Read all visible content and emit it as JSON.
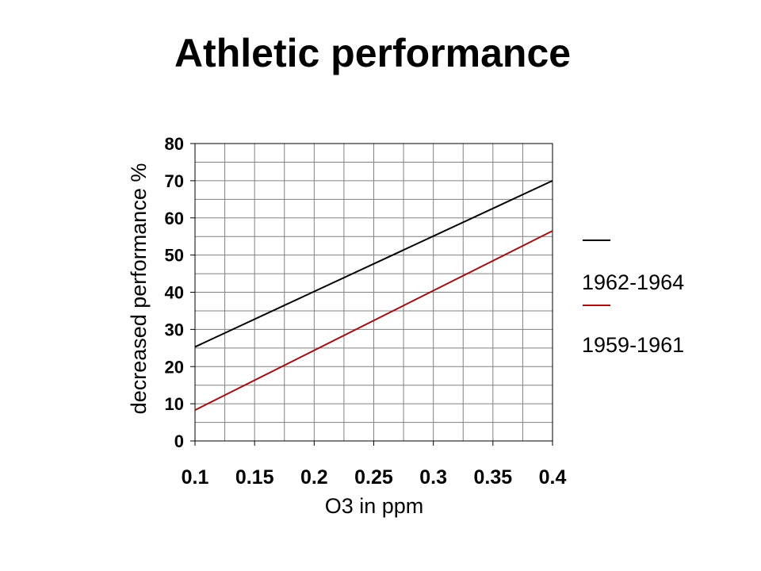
{
  "slide": {
    "title": "Athletic performance"
  },
  "chart_data": {
    "type": "line",
    "title": "Athletic performance",
    "xlabel": "O3 in ppm",
    "ylabel": "decreased performance %",
    "xlim": [
      0.1,
      0.4
    ],
    "ylim": [
      0,
      80
    ],
    "x_ticks": [
      "0.1",
      "0.15",
      "0.2",
      "0.25",
      "0.3",
      "0.35",
      "0.4"
    ],
    "y_ticks": [
      "0",
      "10",
      "20",
      "30",
      "40",
      "50",
      "60",
      "70",
      "80"
    ],
    "grid": true,
    "legend_position": "right",
    "series": [
      {
        "name": "1962-1964",
        "color": "#000000",
        "x": [
          0.1,
          0.4
        ],
        "y": [
          25.3,
          70.0
        ]
      },
      {
        "name": "1959-1961",
        "color": "#a01010",
        "x": [
          0.1,
          0.4
        ],
        "y": [
          8.3,
          56.5
        ]
      }
    ]
  }
}
